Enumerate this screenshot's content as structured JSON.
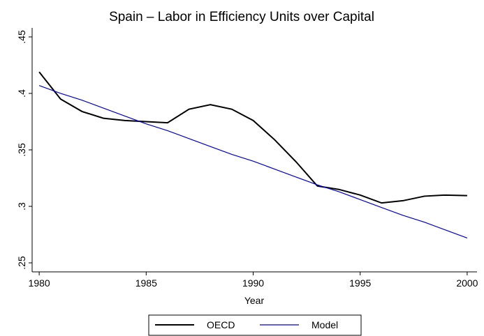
{
  "chart_data": {
    "type": "line",
    "title": "Spain – Labor in Efficiency Units over Capital",
    "x_label": "Year",
    "x": [
      1980,
      1981,
      1982,
      1983,
      1984,
      1985,
      1986,
      1987,
      1988,
      1989,
      1990,
      1991,
      1992,
      1993,
      1994,
      1995,
      1996,
      1997,
      1998,
      1999,
      2000
    ],
    "series": [
      {
        "name": "OECD",
        "color": "#000000",
        "values": [
          0.419,
          0.395,
          0.384,
          0.378,
          0.376,
          0.375,
          0.374,
          0.386,
          0.39,
          0.386,
          0.376,
          0.359,
          0.3395,
          0.318,
          0.315,
          0.31,
          0.303,
          0.305,
          0.309,
          0.31,
          0.3095
        ]
      },
      {
        "name": "Model",
        "color": "#0000cc",
        "values": [
          0.407,
          0.4,
          0.394,
          0.387,
          0.38,
          0.373,
          0.367,
          0.36,
          0.353,
          0.346,
          0.34,
          0.333,
          0.326,
          0.319,
          0.313,
          0.306,
          0.299,
          0.292,
          0.286,
          0.279,
          0.272
        ]
      }
    ],
    "xlim": [
      1979.67,
      2000.46
    ],
    "xticks": [
      1980,
      1985,
      1990,
      1995,
      2000
    ],
    "ylim": [
      0.242,
      0.458
    ],
    "yticks": [
      {
        "value": 0.25,
        "label": ".25"
      },
      {
        "value": 0.3,
        "label": ".3"
      },
      {
        "value": 0.35,
        "label": ".35"
      },
      {
        "value": 0.4,
        "label": ".4"
      },
      {
        "value": 0.45,
        "label": ".45"
      }
    ],
    "legend": "bottom"
  }
}
